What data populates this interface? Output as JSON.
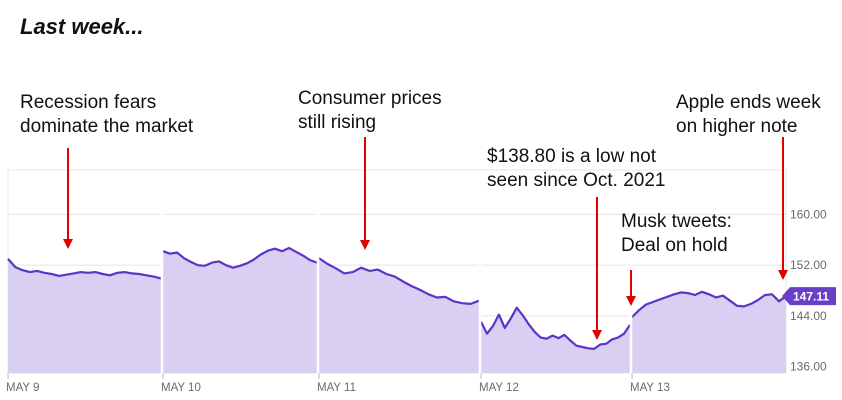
{
  "header": {
    "title": "Last week..."
  },
  "colors": {
    "area_fill": "#d9cff2",
    "line": "#5b34c9",
    "arrow": "#e00000",
    "price_badge": "#6a3fc8",
    "grid": "#e4e4e4"
  },
  "chart_data": {
    "type": "area",
    "ylim": [
      135,
      167
    ],
    "yticks": [
      {
        "value": 160,
        "label": "160.00"
      },
      {
        "value": 152,
        "label": "152.00"
      },
      {
        "value": 144,
        "label": "144.00"
      },
      {
        "value": 136,
        "label": "136.00"
      }
    ],
    "days": [
      {
        "label": "MAY 9",
        "values": [
          153.0,
          151.7,
          151.2,
          150.9,
          151.1,
          150.8,
          150.6,
          150.3,
          150.5,
          150.7,
          150.9,
          150.8,
          150.9,
          150.6,
          150.4,
          150.8,
          150.9,
          150.7,
          150.6,
          150.4,
          150.2,
          149.9
        ]
      },
      {
        "label": "MAY 10",
        "values": [
          154.2,
          153.8,
          154.0,
          153.1,
          152.5,
          152.0,
          151.9,
          152.4,
          152.6,
          152.0,
          151.6,
          151.9,
          152.3,
          152.9,
          153.7,
          154.3,
          154.6,
          154.2,
          154.7,
          154.1,
          153.5,
          152.8,
          152.4
        ]
      },
      {
        "label": "MAY 11",
        "values": [
          153.1,
          152.2,
          151.5,
          150.7,
          150.9,
          151.6,
          151.1,
          151.3,
          150.6,
          150.2,
          149.4,
          148.7,
          148.1,
          147.4,
          146.9,
          147.0,
          146.3,
          146.0,
          145.9,
          146.4
        ]
      },
      {
        "label": "MAY 12",
        "values": [
          143.1,
          141.2,
          142.4,
          144.2,
          142.1,
          143.6,
          145.3,
          144.1,
          142.7,
          141.5,
          140.6,
          140.4,
          140.9,
          140.5,
          141.0,
          140.1,
          139.3,
          139.1,
          138.9,
          138.8,
          139.5,
          139.6,
          140.3,
          140.6,
          141.2,
          142.6
        ]
      },
      {
        "label": "MAY 13",
        "values": [
          143.8,
          144.9,
          145.8,
          146.2,
          146.6,
          147.0,
          147.4,
          147.7,
          147.6,
          147.3,
          147.8,
          147.4,
          146.9,
          147.2,
          146.4,
          145.6,
          145.5,
          145.9,
          146.5,
          147.3,
          147.4,
          146.3,
          147.11
        ]
      }
    ],
    "last_price": "147.11",
    "annotations": [
      {
        "lines": [
          "Recession fears",
          "dominate the market"
        ]
      },
      {
        "lines": [
          "Consumer prices",
          "still rising"
        ]
      },
      {
        "lines": [
          "$138.80 is a low not",
          "seen since Oct. 2021"
        ]
      },
      {
        "lines": [
          "Musk tweets:",
          "Deal on hold"
        ]
      },
      {
        "lines": [
          "Apple ends week",
          "on higher note"
        ]
      }
    ]
  }
}
